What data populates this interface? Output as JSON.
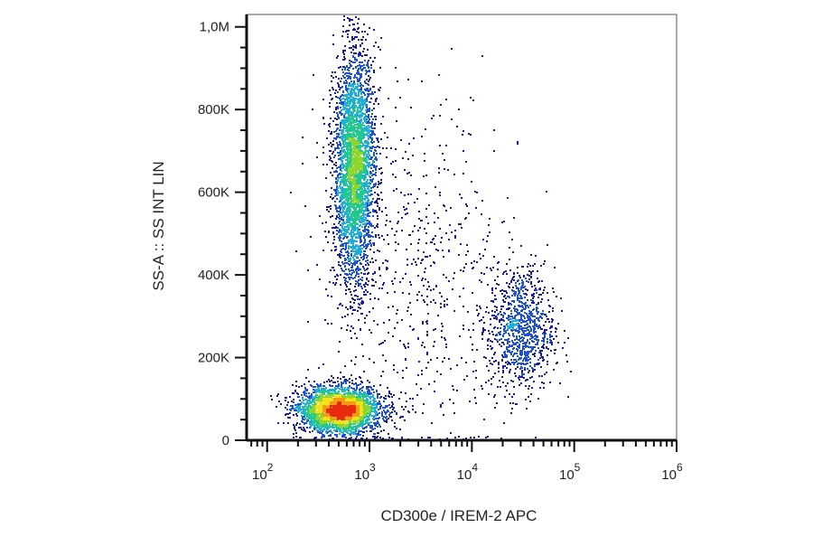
{
  "chart_data": {
    "type": "scatter",
    "title": "",
    "xlabel": "CD300e / IREM-2 APC",
    "ylabel": "SS-A :: SS INT LIN",
    "x_scale": "log",
    "xlim": [
      63,
      1000000
    ],
    "ylim": [
      0,
      1030000
    ],
    "x_ticks": [
      {
        "value": 100,
        "base": "10",
        "exp": "2"
      },
      {
        "value": 1000,
        "base": "10",
        "exp": "3"
      },
      {
        "value": 10000,
        "base": "10",
        "exp": "4"
      },
      {
        "value": 100000,
        "base": "10",
        "exp": "5"
      },
      {
        "value": 1000000,
        "base": "10",
        "exp": "6"
      }
    ],
    "y_ticks": [
      {
        "value": 0,
        "label": "0"
      },
      {
        "value": 200000,
        "label": "200K"
      },
      {
        "value": 400000,
        "label": "400K"
      },
      {
        "value": 600000,
        "label": "600K"
      },
      {
        "value": 800000,
        "label": "800K"
      },
      {
        "value": 1000000,
        "label": "1,0M"
      }
    ],
    "grid": false,
    "legend": "none",
    "density_colors": [
      "#1a1aa8",
      "#1f4fd6",
      "#1ab0d8",
      "#22c98e",
      "#8fd62a",
      "#f2e21a",
      "#f59a14",
      "#e82a10"
    ],
    "populations": [
      {
        "center_x": 500,
        "center_y": 75000,
        "spread_log_x": 0.2,
        "spread_y": 28000,
        "count": 3000
      },
      {
        "center_x": 700,
        "center_y": 660000,
        "spread_log_x": 0.1,
        "spread_y": 140000,
        "count": 3400
      },
      {
        "center_x": 30000,
        "center_y": 270000,
        "spread_log_x": 0.16,
        "spread_y": 75000,
        "count": 950
      },
      {
        "center_x": 3000,
        "center_y": 400000,
        "spread_log_x": 0.5,
        "spread_y": 230000,
        "count": 650
      }
    ]
  }
}
